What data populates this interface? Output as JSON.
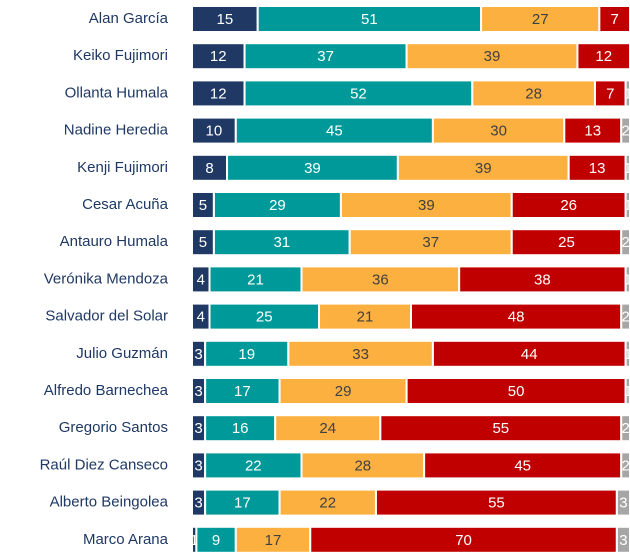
{
  "chart_data": {
    "type": "stacked-barh",
    "categories": [
      "Alan García",
      "Keiko Fujimori",
      "Ollanta Humala",
      "Nadine Heredia",
      "Kenji Fujimori",
      "Cesar Acuña",
      "Antauro Humala",
      "Verónika Mendoza",
      "Salvador del Solar",
      "Julio Guzmán",
      "Alfredo Barnechea",
      "Gregorio Santos",
      "Raúl Diez Canseco",
      "Alberto Beingolea",
      "Marco Arana"
    ],
    "xlim": [
      0,
      100
    ],
    "series": [
      {
        "color": "#203864",
        "values": [
          15,
          12,
          12,
          10,
          8,
          5,
          5,
          4,
          4,
          3,
          3,
          3,
          3,
          3,
          1
        ]
      },
      {
        "color": "#009999",
        "values": [
          51,
          37,
          52,
          45,
          39,
          29,
          31,
          21,
          25,
          19,
          17,
          16,
          22,
          17,
          9
        ]
      },
      {
        "color": "#fbb040",
        "values": [
          27,
          39,
          28,
          30,
          39,
          39,
          37,
          36,
          21,
          33,
          29,
          24,
          28,
          22,
          17
        ]
      },
      {
        "color": "#c00000",
        "values": [
          7,
          12,
          7,
          13,
          13,
          26,
          25,
          38,
          48,
          44,
          50,
          55,
          45,
          55,
          70
        ]
      },
      {
        "color": "#a6a6a6",
        "values": [
          null,
          null,
          1,
          2,
          1,
          1,
          2,
          1,
          2,
          1,
          1,
          2,
          2,
          3,
          3
        ]
      }
    ]
  }
}
